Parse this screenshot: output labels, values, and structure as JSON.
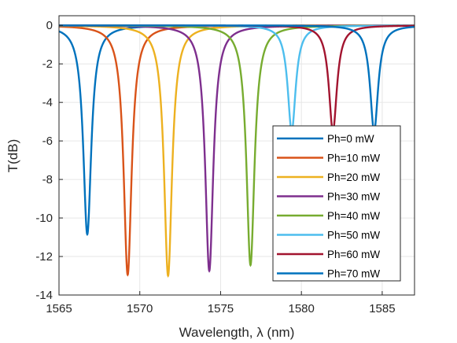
{
  "chart_data": {
    "type": "line",
    "title": "",
    "xlabel": "Wavelength, λ (nm)",
    "ylabel": "T(dB)",
    "xlim": [
      1565,
      1587
    ],
    "ylim": [
      -14,
      0.5
    ],
    "x_ticks": [
      "1565",
      "1570",
      "1575",
      "1580",
      "1585"
    ],
    "y_ticks": [
      "0",
      "-2",
      "-4",
      "-6",
      "-8",
      "-10",
      "-12",
      "-14"
    ],
    "grid": true,
    "legend_position": "bottom-right",
    "series": [
      {
        "name": "Ph=0 mW",
        "color": "#0072BD",
        "dip_center": 1566.75,
        "dip_depth": -10.85
      },
      {
        "name": "Ph=10 mW",
        "color": "#D95319",
        "dip_center": 1569.25,
        "dip_depth": -12.95
      },
      {
        "name": "Ph=20 mW",
        "color": "#EDB120",
        "dip_center": 1571.75,
        "dip_depth": -13.0
      },
      {
        "name": "Ph=30 mW",
        "color": "#7E2F8E",
        "dip_center": 1574.3,
        "dip_depth": -12.75
      },
      {
        "name": "Ph=40 mW",
        "color": "#77AC30",
        "dip_center": 1576.85,
        "dip_depth": -12.45
      },
      {
        "name": "Ph=50 mW",
        "color": "#4DBEEE",
        "dip_center": 1579.4,
        "dip_depth": -5.5
      },
      {
        "name": "Ph=60 mW",
        "color": "#A2142F",
        "dip_center": 1581.95,
        "dip_depth": -5.5
      },
      {
        "name": "Ph=70 mW",
        "color": "#0072BD",
        "dip_center": 1584.5,
        "dip_depth": -5.5
      }
    ]
  }
}
